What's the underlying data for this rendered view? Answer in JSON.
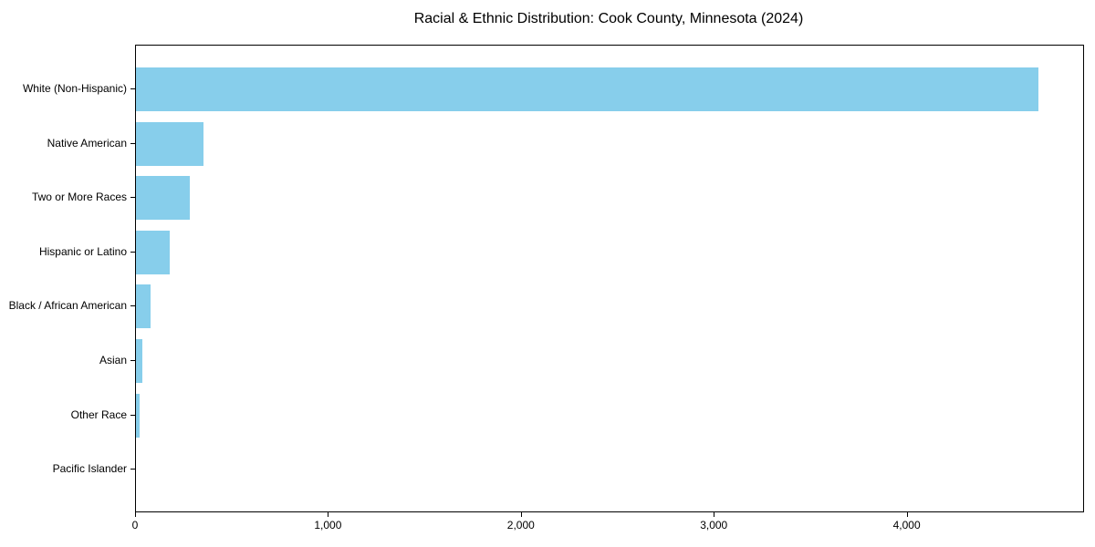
{
  "title": "Racial & Ethnic Distribution: Cook County, Minnesota (2024)",
  "chart_data": {
    "type": "bar",
    "orientation": "horizontal",
    "title": "Racial & Ethnic Distribution: Cook County, Minnesota (2024)",
    "categories": [
      "White (Non-Hispanic)",
      "Native American",
      "Two or More Races",
      "Hispanic or Latino",
      "Black / African American",
      "Asian",
      "Other Race",
      "Pacific Islander"
    ],
    "values": [
      4680,
      350,
      280,
      175,
      75,
      35,
      20,
      0
    ],
    "xlabel": "",
    "ylabel": "",
    "xlim": [
      0,
      4910
    ],
    "x_ticks": [
      0,
      1000,
      2000,
      3000,
      4000
    ],
    "x_tick_labels": [
      "0",
      "1,000",
      "2,000",
      "3,000",
      "4,000"
    ],
    "grid": false,
    "legend": null,
    "bar_color": "#87CEEB",
    "axis_color": "#000000",
    "text_color": "#000000",
    "background_color": "#ffffff"
  }
}
